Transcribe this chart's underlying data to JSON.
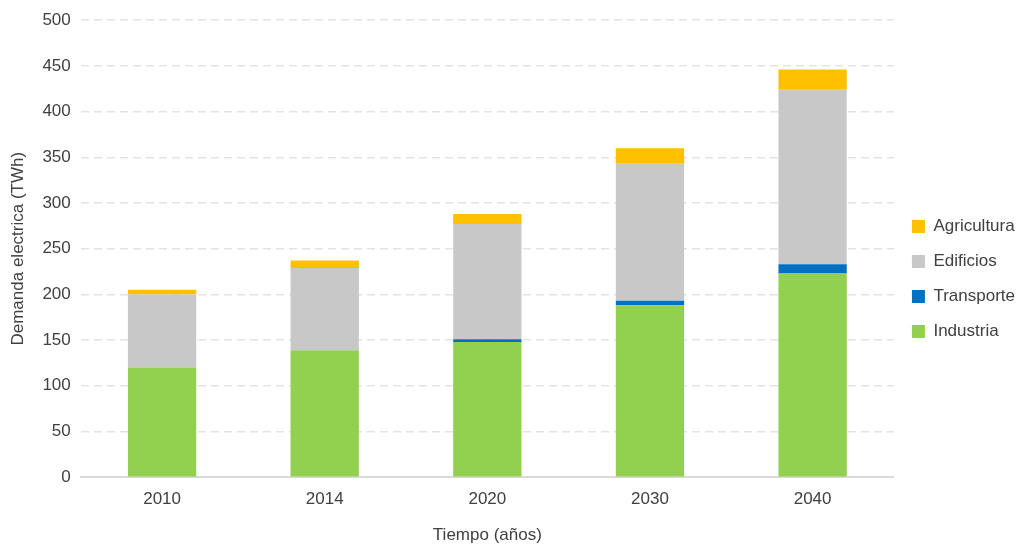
{
  "chart_data": {
    "type": "bar",
    "stacked": true,
    "xlabel": "Tiempo (años)",
    "ylabel": "Demanda electrica (TWh)",
    "categories": [
      "2010",
      "2014",
      "2020",
      "2030",
      "2040"
    ],
    "series": [
      {
        "name": "Industria",
        "color": "#92d050",
        "values": [
          120,
          139,
          148,
          188,
          223
        ]
      },
      {
        "name": "Transporte",
        "color": "#0070c0",
        "values": [
          0,
          0,
          3,
          5,
          10
        ]
      },
      {
        "name": "Edificios",
        "color": "#c9c8c8",
        "values": [
          80,
          90,
          126,
          150,
          191
        ]
      },
      {
        "name": "Agricultura",
        "color": "#ffc000",
        "values": [
          5,
          8,
          11,
          17,
          22
        ]
      }
    ],
    "ylim": [
      0,
      500
    ],
    "yticks": [
      0,
      50,
      100,
      150,
      200,
      250,
      300,
      350,
      400,
      450,
      500
    ],
    "grid": "y",
    "legend": "right"
  }
}
